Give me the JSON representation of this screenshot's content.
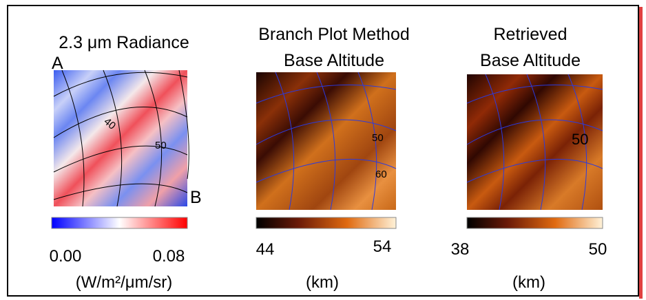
{
  "panels": [
    {
      "title": [
        "2.3 μm Radiance"
      ],
      "corner_labels": [
        "A",
        "B"
      ],
      "grid_labels": [
        "40",
        "50"
      ],
      "colorbar": {
        "min_label": "0.00",
        "max_label": "0.08"
      },
      "units": "(W/m²/μm/sr)"
    },
    {
      "title": [
        "Branch Plot Method",
        "Base Altitude"
      ],
      "grid_labels": [
        "50",
        "60"
      ],
      "colorbar": {
        "min_label": "44",
        "max_label": "54"
      },
      "units": "(km)"
    },
    {
      "title": [
        "Retrieved",
        "Base Altitude"
      ],
      "grid_labels": [
        "50"
      ],
      "colorbar": {
        "min_label": "38",
        "max_label": "50"
      },
      "units": "(km)"
    }
  ]
}
